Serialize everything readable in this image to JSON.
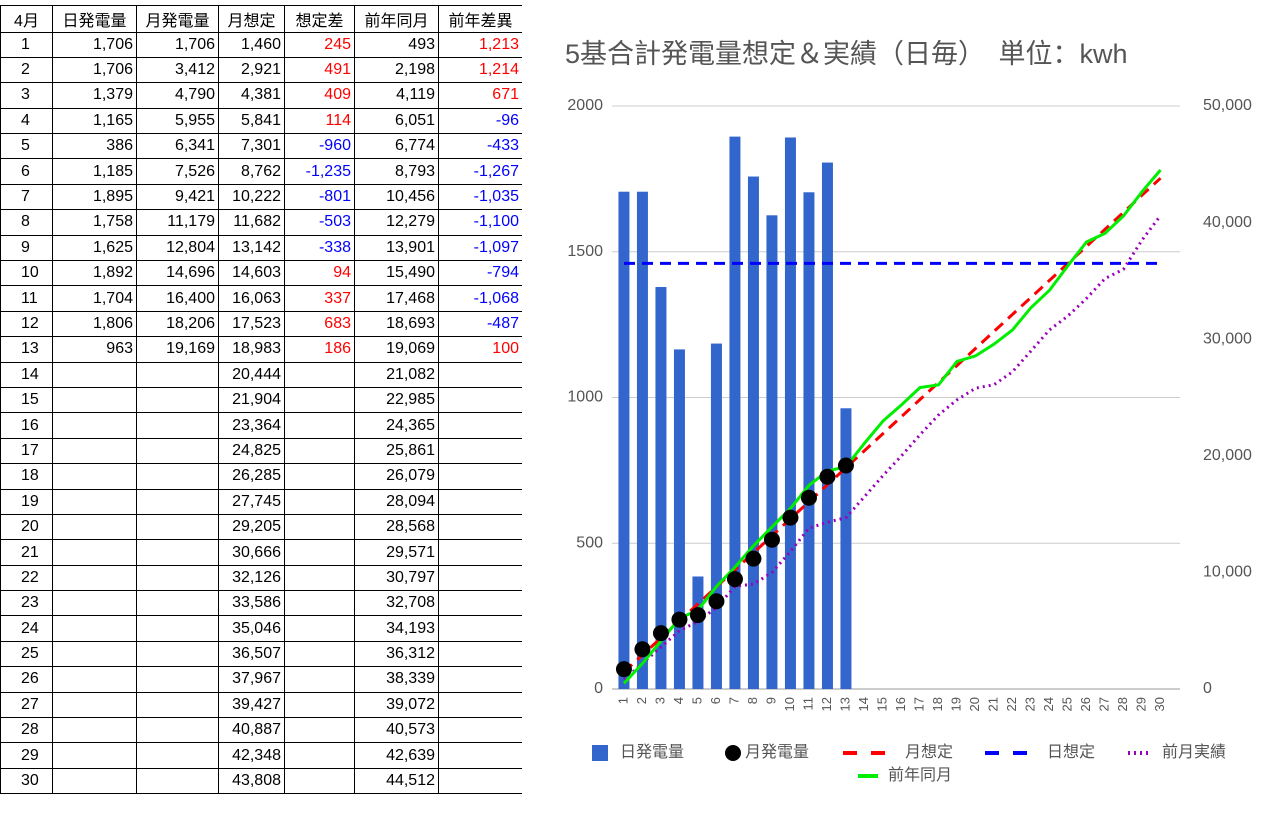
{
  "table": {
    "header": [
      "4月",
      "日発電量",
      "月発電量",
      "月想定",
      "想定差",
      "前年同月",
      "前年差異"
    ],
    "widths": [
      52,
      84,
      82,
      66,
      70,
      84,
      84
    ],
    "positive_color": "#ff0000",
    "negative_color": "#0000ff",
    "signed_columns": [
      4,
      6
    ],
    "rows": [
      [
        "1",
        "1,706",
        "1,706",
        "1,460",
        "245",
        "493",
        "1,213"
      ],
      [
        "2",
        "1,706",
        "3,412",
        "2,921",
        "491",
        "2,198",
        "1,214"
      ],
      [
        "3",
        "1,379",
        "4,790",
        "4,381",
        "409",
        "4,119",
        "671"
      ],
      [
        "4",
        "1,165",
        "5,955",
        "5,841",
        "114",
        "6,051",
        "-96"
      ],
      [
        "5",
        "386",
        "6,341",
        "7,301",
        "-960",
        "6,774",
        "-433"
      ],
      [
        "6",
        "1,185",
        "7,526",
        "8,762",
        "-1,235",
        "8,793",
        "-1,267"
      ],
      [
        "7",
        "1,895",
        "9,421",
        "10,222",
        "-801",
        "10,456",
        "-1,035"
      ],
      [
        "8",
        "1,758",
        "11,179",
        "11,682",
        "-503",
        "12,279",
        "-1,100"
      ],
      [
        "9",
        "1,625",
        "12,804",
        "13,142",
        "-338",
        "13,901",
        "-1,097"
      ],
      [
        "10",
        "1,892",
        "14,696",
        "14,603",
        "94",
        "15,490",
        "-794"
      ],
      [
        "11",
        "1,704",
        "16,400",
        "16,063",
        "337",
        "17,468",
        "-1,068"
      ],
      [
        "12",
        "1,806",
        "18,206",
        "17,523",
        "683",
        "18,693",
        "-487"
      ],
      [
        "13",
        "963",
        "19,169",
        "18,983",
        "186",
        "19,069",
        "100"
      ],
      [
        "14",
        null,
        null,
        "20,444",
        null,
        "21,082",
        null
      ],
      [
        "15",
        null,
        null,
        "21,904",
        null,
        "22,985",
        null
      ],
      [
        "16",
        null,
        null,
        "23,364",
        null,
        "24,365",
        null
      ],
      [
        "17",
        null,
        null,
        "24,825",
        null,
        "25,861",
        null
      ],
      [
        "18",
        null,
        null,
        "26,285",
        null,
        "26,079",
        null
      ],
      [
        "19",
        null,
        null,
        "27,745",
        null,
        "28,094",
        null
      ],
      [
        "20",
        null,
        null,
        "29,205",
        null,
        "28,568",
        null
      ],
      [
        "21",
        null,
        null,
        "30,666",
        null,
        "29,571",
        null
      ],
      [
        "22",
        null,
        null,
        "32,126",
        null,
        "30,797",
        null
      ],
      [
        "23",
        null,
        null,
        "33,586",
        null,
        "32,708",
        null
      ],
      [
        "24",
        null,
        null,
        "35,046",
        null,
        "34,193",
        null
      ],
      [
        "25",
        null,
        null,
        "36,507",
        null,
        "36,312",
        null
      ],
      [
        "26",
        null,
        null,
        "37,967",
        null,
        "38,339",
        null
      ],
      [
        "27",
        null,
        null,
        "39,427",
        null,
        "39,072",
        null
      ],
      [
        "28",
        null,
        null,
        "40,887",
        null,
        "40,573",
        null
      ],
      [
        "29",
        null,
        null,
        "42,348",
        null,
        "42,639",
        null
      ],
      [
        "30",
        null,
        null,
        "43,808",
        null,
        "44,512",
        null
      ]
    ]
  },
  "chart_data": {
    "type": "combo",
    "title": "5基合計発電量想定＆実績（日毎）　単位：kwh",
    "categories": [
      "1",
      "2",
      "3",
      "4",
      "5",
      "6",
      "7",
      "8",
      "9",
      "10",
      "11",
      "12",
      "13",
      "14",
      "15",
      "16",
      "17",
      "18",
      "19",
      "20",
      "21",
      "22",
      "23",
      "24",
      "25",
      "26",
      "27",
      "28",
      "29",
      "30"
    ],
    "ylim": [
      0,
      2000
    ],
    "yticks": [
      0,
      500,
      1000,
      1500,
      2000
    ],
    "y2lim": [
      0,
      50000
    ],
    "y2ticks": [
      0,
      {
        "value": 10000,
        "label": "10,000"
      },
      {
        "value": 20000,
        "label": "20,000"
      },
      {
        "value": 30000,
        "label": "30,000"
      },
      {
        "value": 40000,
        "label": "40,000"
      },
      {
        "value": 50000,
        "label": "50,000"
      }
    ],
    "grid": true,
    "legend": "bottom",
    "series": [
      {
        "name": "日発電量",
        "type": "bar",
        "color": "#3366cc",
        "values": [
          1706,
          1706,
          1379,
          1165,
          386,
          1185,
          1895,
          1758,
          1625,
          1892,
          1704,
          1806,
          963,
          null,
          null,
          null,
          null,
          null,
          null,
          null,
          null,
          null,
          null,
          null,
          null,
          null,
          null,
          null,
          null,
          null
        ]
      },
      {
        "name": "月発電量",
        "type": "scatter",
        "color": "#000000",
        "axis": "y2",
        "values": [
          1706,
          3412,
          4790,
          5955,
          6341,
          7526,
          9421,
          11179,
          12804,
          14696,
          16400,
          18206,
          19169,
          null,
          null,
          null,
          null,
          null,
          null,
          null,
          null,
          null,
          null,
          null,
          null,
          null,
          null,
          null,
          null,
          null
        ]
      },
      {
        "name": "月想定",
        "type": "line",
        "dash": "dashed",
        "color": "#ff0000",
        "axis": "y2",
        "values": [
          1460,
          2921,
          4381,
          5841,
          7301,
          8762,
          10222,
          11682,
          13142,
          14603,
          16063,
          17523,
          18983,
          20444,
          21904,
          23364,
          24825,
          26285,
          27745,
          29205,
          30666,
          32126,
          33586,
          35046,
          36507,
          37967,
          39427,
          40887,
          42348,
          43808
        ]
      },
      {
        "name": "日想定",
        "type": "line",
        "dash": "dashed",
        "color": "#0000ff",
        "values": [
          1460,
          1460,
          1460,
          1460,
          1460,
          1460,
          1460,
          1460,
          1460,
          1460,
          1460,
          1460,
          1460,
          1460,
          1460,
          1460,
          1460,
          1460,
          1460,
          1460,
          1460,
          1460,
          1460,
          1460,
          1460,
          1460,
          1460,
          1460,
          1460,
          1460
        ]
      },
      {
        "name": "前月実績",
        "type": "line",
        "dash": "dotted",
        "color": "#9900bb",
        "axis": "y2",
        "values": [
          800,
          2200,
          3600,
          5000,
          5800,
          7000,
          8800,
          9000,
          10000,
          11800,
          13800,
          14300,
          14700,
          16500,
          18300,
          20000,
          21800,
          23500,
          24800,
          25800,
          26100,
          27200,
          29000,
          30800,
          32000,
          33500,
          35200,
          36000,
          38500,
          40600
        ]
      },
      {
        "name": "前年同月",
        "type": "line",
        "dash": "solid",
        "color": "#00ee00",
        "axis": "y2",
        "values": [
          493,
          2198,
          4119,
          6051,
          6774,
          8793,
          10456,
          12279,
          13901,
          15490,
          17468,
          18693,
          19069,
          21082,
          22985,
          24365,
          25861,
          26079,
          28094,
          28568,
          29571,
          30797,
          32708,
          34193,
          36312,
          38339,
          39072,
          40573,
          42639,
          44512
        ]
      }
    ]
  }
}
